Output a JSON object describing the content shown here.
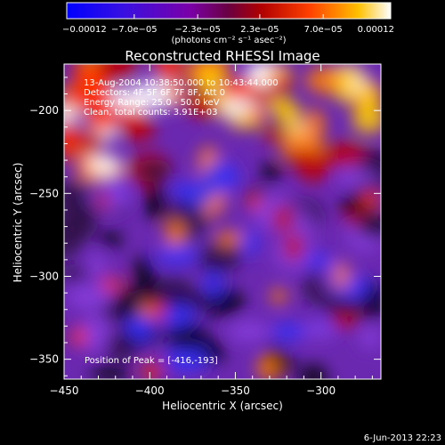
{
  "chart_data": {
    "type": "heatmap",
    "title": "Reconstructed RHESSI Image",
    "xlabel": "Heliocentric X (arcsec)",
    "ylabel": "Heliocentric Y (arcsec)",
    "xlim": [
      -450,
      -265
    ],
    "ylim": [
      -362,
      -172
    ],
    "x_ticks": [
      -450,
      -400,
      -350,
      -300
    ],
    "x_tick_labels": [
      "−450",
      "−400",
      "−350",
      "−300"
    ],
    "y_ticks": [
      -200,
      -250,
      -300,
      -350
    ],
    "y_tick_labels": [
      "−200",
      "−250",
      "−300",
      "−350"
    ],
    "colorbar": {
      "range": [
        -0.00012,
        0.00012
      ],
      "ticks": [
        -0.00012,
        -7e-05,
        -2.3e-05,
        2.3e-05,
        7e-05,
        0.00012
      ],
      "tick_labels": [
        "−0.00012",
        "−7.0e−05",
        "−2.3e−05",
        "2.3e−05",
        "7.0e−05",
        "0.00012"
      ],
      "unit": "(photons cm⁻² s⁻¹ asec⁻²)",
      "colors": [
        "#0000ff",
        "#7a00a8",
        "#b00000",
        "#ff4000",
        "#ffc000",
        "#ffffff"
      ]
    },
    "annotations": [
      "13-Aug-2004 10:38:50.000 to 10:43:44.000",
      "Detectors: 4F 5F 6F 7F 8F, Att 0",
      "Energy Range: 25.0 - 50.0 keV",
      "Clean, total counts: 3.91E+03"
    ],
    "peak_label": "Position of Peak = [-416,-193]",
    "peak": [
      -416,
      -193
    ]
  },
  "footer": {
    "timestamp": "6-Jun-2013 22:23"
  }
}
